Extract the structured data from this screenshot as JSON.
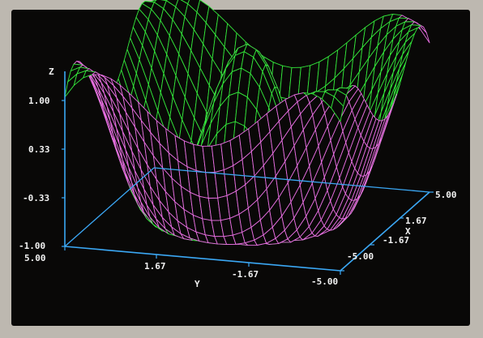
{
  "chart_data": {
    "type": "surface-3d-wireframe",
    "function_hint": "z = cos(r), r = sqrt(x^2 + y^2)",
    "x": {
      "label": "X",
      "range": [
        -5.0,
        5.0
      ],
      "ticks": [
        "5.00",
        "1.67",
        "-1.67",
        "-5.00"
      ]
    },
    "y": {
      "label": "Y",
      "range": [
        -5.0,
        5.0
      ],
      "ticks": [
        "5.00",
        "1.67",
        "-1.67",
        "-5.00"
      ]
    },
    "z": {
      "label": "Z",
      "range": [
        -1.0,
        1.0
      ],
      "ticks": [
        "1.00",
        "0.33",
        "-0.33",
        "-1.00"
      ]
    },
    "grid_lines": 31,
    "colors": {
      "top_surface": "#33e63a",
      "bottom_surface": "#e66ee0",
      "axes": "#3ba8f5",
      "text": "#f2f2f2",
      "background": "#090807"
    }
  }
}
